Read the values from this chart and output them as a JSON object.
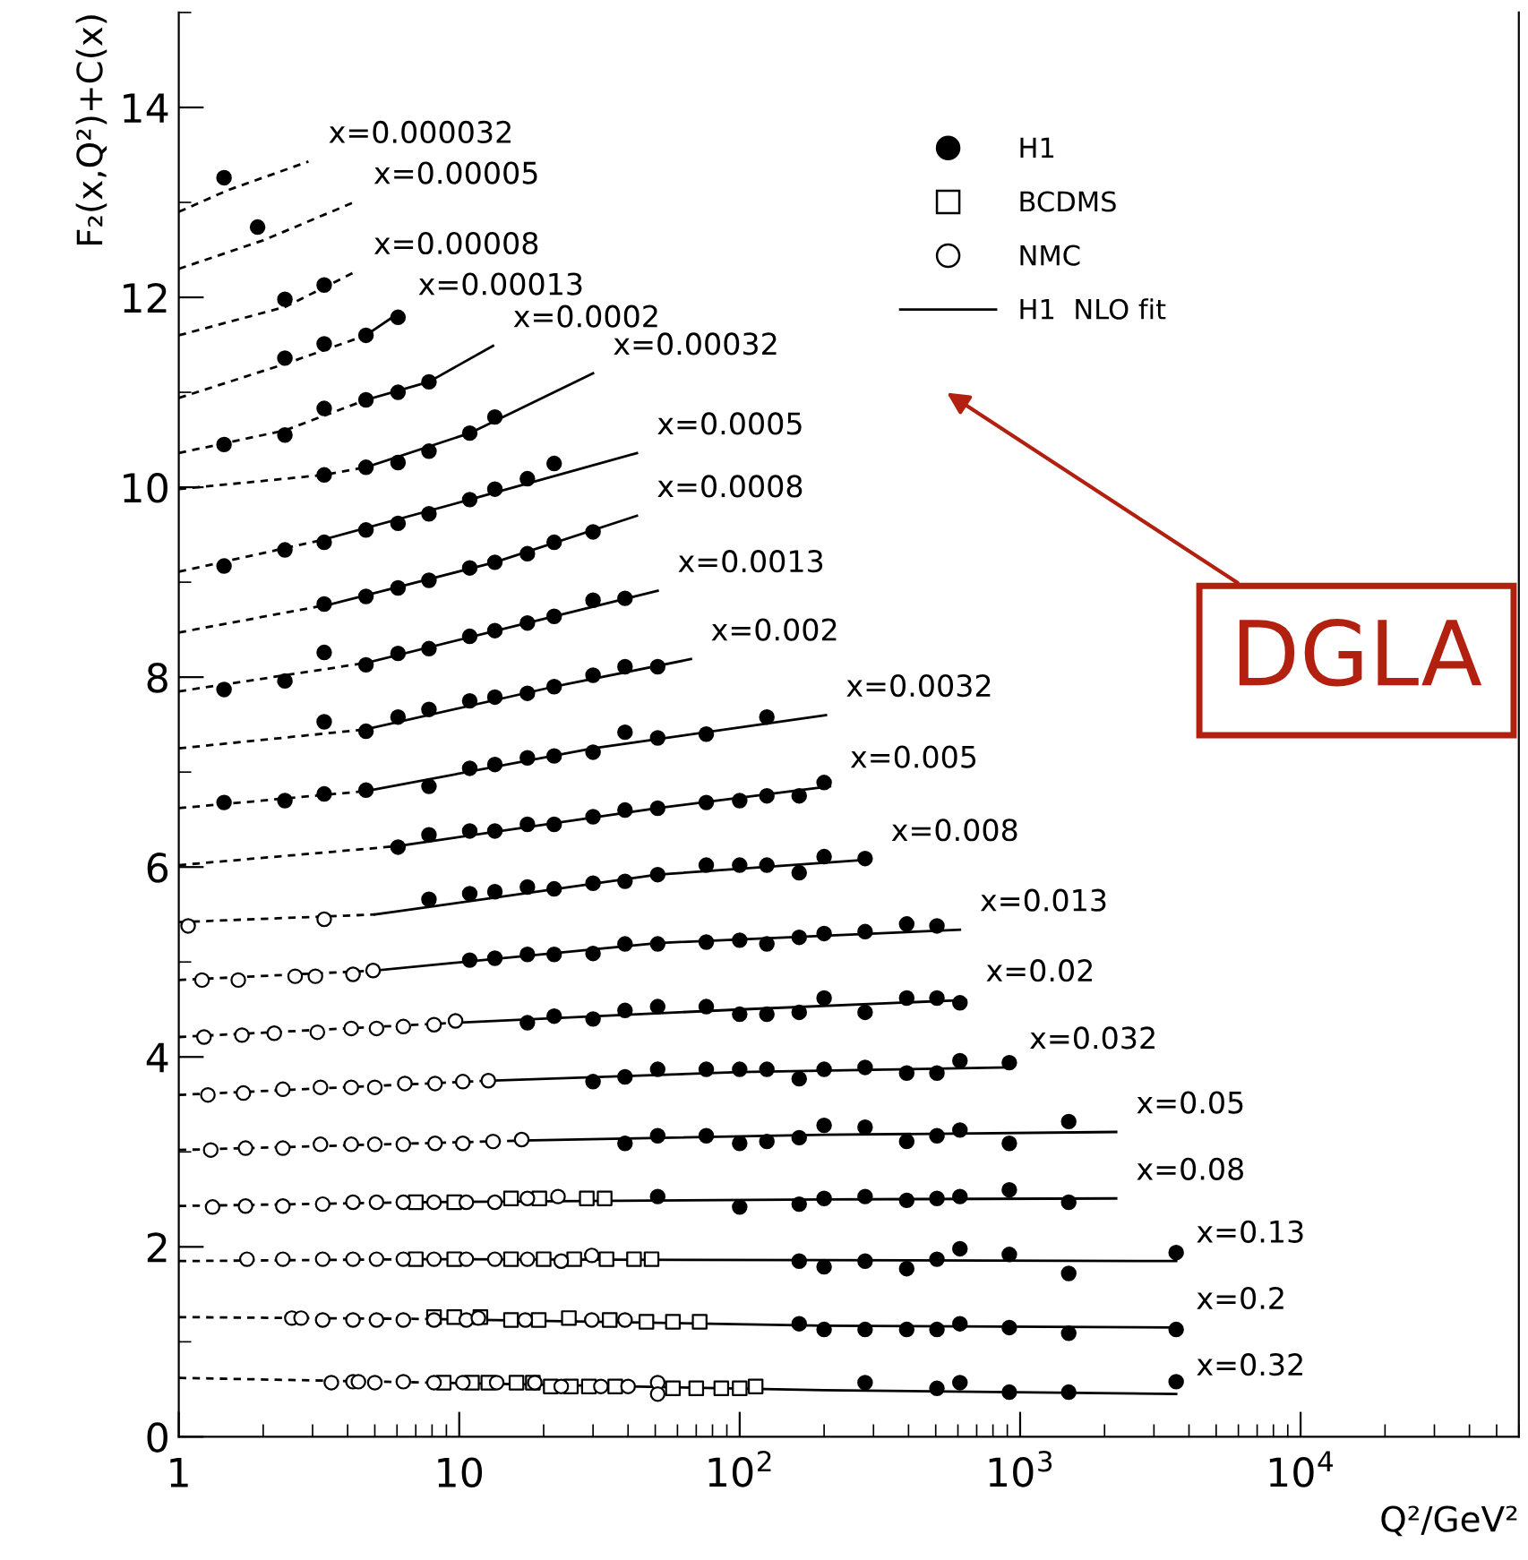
{
  "chart_data": {
    "type": "scatter",
    "xlabel": "Q²/GeV²",
    "ylabel": "F₂(x,Q²)+C(x)",
    "log": "x",
    "grid": false,
    "legend": "top right",
    "xlim": [
      1,
      60000
    ],
    "ylim": [
      0,
      15
    ],
    "xticks": [
      1,
      10,
      {
        "value": 100,
        "label": "10$^{2}$"
      },
      {
        "value": 1000,
        "label": "10$^{3}$"
      },
      {
        "value": 10000,
        "label": "10$^{4}$"
      }
    ],
    "yticks": [
      0,
      2,
      4,
      6,
      8,
      10,
      12,
      14
    ],
    "annotations": [
      {
        "text": "x=0.000032",
        "x": 2.9,
        "y": 13.43
      },
      {
        "text": "x=0.00005",
        "x": 4.2,
        "y": 13.0
      },
      {
        "text": "x=0.00008",
        "x": 4.2,
        "y": 12.26
      },
      {
        "text": "x=0.00013",
        "x": 6.05,
        "y": 11.83
      },
      {
        "text": "x=0.0002",
        "x": 13.2,
        "y": 11.49
      },
      {
        "text": "x=0.00032",
        "x": 30,
        "y": 11.2
      },
      {
        "text": "x=0.0005",
        "x": 43,
        "y": 10.36
      },
      {
        "text": "x=0.0008",
        "x": 43,
        "y": 9.7
      },
      {
        "text": "x=0.0013",
        "x": 51,
        "y": 8.91
      },
      {
        "text": "x=0.002",
        "x": 67,
        "y": 8.19
      },
      {
        "text": "x=0.0032",
        "x": 203,
        "y": 7.6
      },
      {
        "text": "x=0.005",
        "x": 210,
        "y": 6.85
      },
      {
        "text": "x=0.008",
        "x": 294,
        "y": 6.08
      },
      {
        "text": "x=0.013",
        "x": 610,
        "y": 5.34
      },
      {
        "text": "x=0.02",
        "x": 640,
        "y": 4.6
      },
      {
        "text": "x=0.032",
        "x": 915,
        "y": 3.89
      },
      {
        "text": "x=0.05",
        "x": 2200,
        "y": 3.21
      },
      {
        "text": "x=0.08",
        "x": 2200,
        "y": 2.51
      },
      {
        "text": "x=0.13",
        "x": 3600,
        "y": 1.85
      },
      {
        "text": "x=0.2",
        "x": 3600,
        "y": 1.15
      },
      {
        "text": "x=0.32",
        "x": 3600,
        "y": 0.45
      },
      "DGLA"
    ],
    "series": [
      {
        "type": "line",
        "line_style": "dashed",
        "color": "#000000",
        "x": [
          1,
          1.5,
          2.9
        ],
        "values": [
          12.9,
          13.13,
          13.43
        ]
      },
      {
        "type": "line",
        "line_style": "dashed",
        "color": "#000000",
        "x": [
          1,
          2,
          4.2
        ],
        "values": [
          12.3,
          12.6,
          13.0
        ]
      },
      {
        "type": "line",
        "line_style": "dashed",
        "color": "#000000",
        "x": [
          1,
          2.4,
          4.2
        ],
        "values": [
          11.6,
          11.9,
          12.26
        ]
      },
      {
        "type": "line",
        "line_style": "dashed",
        "color": "#000000",
        "x": [
          1,
          2.4,
          4.65
        ],
        "values": [
          10.94,
          11.3,
          11.6
        ]
      },
      {
        "type": "line",
        "line_style": "solid",
        "name": "H1  NLO fit",
        "color": "#000000",
        "x": [
          4.65,
          6.05
        ],
        "values": [
          11.6,
          11.83
        ]
      },
      {
        "type": "line",
        "line_style": "dashed",
        "color": "#000000",
        "x": [
          1,
          2.4,
          4.65
        ],
        "values": [
          10.36,
          10.6,
          10.92
        ]
      },
      {
        "type": "line",
        "line_style": "solid",
        "color": "#000000",
        "x": [
          4.65,
          7.8,
          13.2
        ],
        "values": [
          10.92,
          11.11,
          11.49
        ]
      },
      {
        "type": "line",
        "line_style": "dashed",
        "color": "#000000",
        "x": [
          1,
          3.3,
          4.65
        ],
        "values": [
          9.98,
          10.13,
          10.21
        ]
      },
      {
        "type": "line",
        "line_style": "solid",
        "color": "#000000",
        "x": [
          4.65,
          10.9,
          30
        ],
        "values": [
          10.21,
          10.57,
          11.2
        ]
      },
      {
        "type": "line",
        "line_style": "dashed",
        "color": "#000000",
        "x": [
          1,
          3.3
        ],
        "values": [
          9.11,
          9.45
        ]
      },
      {
        "type": "line",
        "line_style": "solid",
        "color": "#000000",
        "x": [
          3.3,
          10.9,
          43
        ],
        "values": [
          9.45,
          9.87,
          10.36
        ]
      },
      {
        "type": "line",
        "line_style": "dashed",
        "color": "#000000",
        "x": [
          1,
          3.5
        ],
        "values": [
          8.47,
          8.77
        ]
      },
      {
        "type": "line",
        "line_style": "solid",
        "color": "#000000",
        "x": [
          3.5,
          13.4,
          43
        ],
        "values": [
          8.77,
          9.21,
          9.7
        ]
      },
      {
        "type": "line",
        "line_style": "dashed",
        "color": "#000000",
        "x": [
          1,
          4.65
        ],
        "values": [
          7.85,
          8.15
        ]
      },
      {
        "type": "line",
        "line_style": "solid",
        "color": "#000000",
        "x": [
          4.65,
          17.5,
          51
        ],
        "values": [
          8.15,
          8.57,
          8.91
        ]
      },
      {
        "type": "line",
        "line_style": "dashed",
        "color": "#000000",
        "x": [
          1,
          4.65
        ],
        "values": [
          7.25,
          7.45
        ]
      },
      {
        "type": "line",
        "line_style": "solid",
        "color": "#000000",
        "x": [
          4.65,
          21.8,
          67
        ],
        "values": [
          7.45,
          7.9,
          8.19
        ]
      },
      {
        "type": "line",
        "line_style": "dashed",
        "color": "#000000",
        "x": [
          1,
          4.65
        ],
        "values": [
          6.62,
          6.8
        ]
      },
      {
        "type": "line",
        "line_style": "solid",
        "color": "#000000",
        "x": [
          4.65,
          30,
          203
        ],
        "values": [
          6.8,
          7.25,
          7.6
        ]
      },
      {
        "type": "line",
        "line_style": "dashed",
        "color": "#000000",
        "x": [
          1,
          6
        ],
        "values": [
          6.02,
          6.22
        ]
      },
      {
        "type": "line",
        "line_style": "solid",
        "color": "#000000",
        "x": [
          6,
          51,
          210
        ],
        "values": [
          6.22,
          6.62,
          6.85
        ]
      },
      {
        "type": "line",
        "line_style": "dashed",
        "color": "#000000",
        "x": [
          1,
          5
        ],
        "values": [
          5.42,
          5.5
        ]
      },
      {
        "type": "line",
        "line_style": "solid",
        "color": "#000000",
        "x": [
          5,
          51,
          294
        ],
        "values": [
          5.5,
          5.92,
          6.08
        ]
      },
      {
        "type": "line",
        "line_style": "dashed",
        "color": "#000000",
        "x": [
          1,
          5
        ],
        "values": [
          4.81,
          4.91
        ]
      },
      {
        "type": "line",
        "line_style": "solid",
        "color": "#000000",
        "x": [
          5,
          51,
          610
        ],
        "values": [
          4.91,
          5.2,
          5.34
        ]
      },
      {
        "type": "line",
        "line_style": "dashed",
        "color": "#000000",
        "x": [
          1,
          9.7
        ],
        "values": [
          4.21,
          4.36
        ]
      },
      {
        "type": "line",
        "line_style": "solid",
        "color": "#000000",
        "x": [
          9.7,
          100,
          640
        ],
        "values": [
          4.36,
          4.5,
          4.6
        ]
      },
      {
        "type": "line",
        "line_style": "dashed",
        "color": "#000000",
        "x": [
          1,
          12.7
        ],
        "values": [
          3.6,
          3.75
        ]
      },
      {
        "type": "line",
        "line_style": "solid",
        "color": "#000000",
        "x": [
          12.7,
          100,
          915
        ],
        "values": [
          3.75,
          3.84,
          3.89
        ]
      },
      {
        "type": "line",
        "line_style": "dashed",
        "color": "#000000",
        "x": [
          1,
          16.7
        ],
        "values": [
          3.02,
          3.12
        ]
      },
      {
        "type": "line",
        "line_style": "solid",
        "color": "#000000",
        "x": [
          16.7,
          200,
          2200
        ],
        "values": [
          3.12,
          3.18,
          3.21
        ]
      },
      {
        "type": "line",
        "line_style": "dashed",
        "color": "#000000",
        "x": [
          1,
          7
        ],
        "values": [
          2.43,
          2.47
        ]
      },
      {
        "type": "line",
        "line_style": "solid",
        "color": "#000000",
        "x": [
          7,
          200,
          2200
        ],
        "values": [
          2.47,
          2.5,
          2.51
        ]
      },
      {
        "type": "line",
        "line_style": "dashed",
        "color": "#000000",
        "x": [
          1,
          7
        ],
        "values": [
          1.85,
          1.87
        ]
      },
      {
        "type": "line",
        "line_style": "solid",
        "color": "#000000",
        "x": [
          7,
          200,
          3600
        ],
        "values": [
          1.87,
          1.86,
          1.85
        ]
      },
      {
        "type": "line",
        "line_style": "dashed",
        "color": "#000000",
        "x": [
          1,
          8
        ],
        "values": [
          1.26,
          1.24
        ]
      },
      {
        "type": "line",
        "line_style": "solid",
        "color": "#000000",
        "x": [
          8,
          200,
          3600
        ],
        "values": [
          1.24,
          1.17,
          1.15
        ]
      },
      {
        "type": "line",
        "line_style": "dashed",
        "color": "#000000",
        "x": [
          1,
          8
        ],
        "values": [
          0.62,
          0.57
        ]
      },
      {
        "type": "line",
        "line_style": "solid",
        "color": "#000000",
        "x": [
          8,
          200,
          3600
        ],
        "values": [
          0.57,
          0.49,
          0.45
        ]
      },
      {
        "name": "H1",
        "marker": "circle",
        "color": "#000000",
        "x": [
          1.45,
          1.91,
          2.39,
          3.3,
          2.39,
          3.3,
          4.65,
          6.05,
          1.45,
          2.39,
          3.3,
          4.65,
          6.05,
          7.8,
          3.3,
          4.65,
          6.05,
          7.8,
          10.9,
          13.4,
          1.45,
          2.39,
          3.3,
          4.65,
          6.05,
          7.8,
          10.9,
          13.4,
          17.5,
          21.8,
          3.3,
          4.65,
          6.05,
          7.8,
          10.9,
          13.4,
          17.5,
          21.8,
          30,
          1.45,
          2.39,
          3.3,
          4.65,
          6.05,
          7.8,
          10.9,
          13.4,
          17.5,
          21.8,
          30,
          39,
          3.3,
          4.65,
          6.05,
          7.8,
          10.9,
          13.4,
          17.5,
          21.8,
          30,
          39,
          51,
          1.45,
          2.39,
          3.3,
          4.65,
          7.8,
          10.9,
          13.4,
          17.5,
          21.8,
          30,
          39,
          51,
          76,
          125,
          6.05,
          7.8,
          10.9,
          13.4,
          17.5,
          21.8,
          30,
          39,
          51,
          76,
          100,
          125,
          163,
          200,
          7.8,
          10.9,
          13.4,
          17.5,
          21.8,
          30,
          39,
          51,
          76,
          100,
          125,
          163,
          200,
          280,
          10.9,
          13.4,
          17.5,
          21.8,
          30,
          39,
          51,
          76,
          100,
          125,
          163,
          200,
          280,
          394,
          505,
          17.5,
          21.8,
          30,
          39,
          51,
          76,
          100,
          125,
          163,
          200,
          280,
          394,
          505,
          610,
          30,
          39,
          51,
          76,
          100,
          125,
          163,
          200,
          280,
          394,
          505,
          610,
          915,
          39,
          51,
          76,
          100,
          125,
          163,
          200,
          280,
          394,
          505,
          610,
          915,
          1490,
          51,
          100,
          163,
          200,
          280,
          394,
          505,
          610,
          915,
          1490,
          163,
          200,
          280,
          394,
          505,
          610,
          915,
          1490,
          3600,
          163,
          200,
          280,
          394,
          505,
          610,
          915,
          1490,
          3600,
          280,
          505,
          610,
          915,
          1490,
          3600
        ],
        "values": [
          13.26,
          12.74,
          11.98,
          12.13,
          11.36,
          11.51,
          11.6,
          11.79,
          10.45,
          10.55,
          10.83,
          10.92,
          11.0,
          11.11,
          10.13,
          10.21,
          10.26,
          10.38,
          10.57,
          10.74,
          9.17,
          9.34,
          9.42,
          9.55,
          9.62,
          9.72,
          9.87,
          9.98,
          10.09,
          10.25,
          8.77,
          8.85,
          8.94,
          9.02,
          9.15,
          9.21,
          9.3,
          9.42,
          9.53,
          7.87,
          7.96,
          8.26,
          8.13,
          8.25,
          8.3,
          8.43,
          8.49,
          8.57,
          8.64,
          8.81,
          8.83,
          7.53,
          7.43,
          7.58,
          7.66,
          7.75,
          7.79,
          7.83,
          7.9,
          8.02,
          8.11,
          8.11,
          6.68,
          6.7,
          6.77,
          6.81,
          6.85,
          7.04,
          7.08,
          7.15,
          7.17,
          7.21,
          7.42,
          7.36,
          7.4,
          7.58,
          6.21,
          6.34,
          6.38,
          6.38,
          6.45,
          6.45,
          6.53,
          6.6,
          6.62,
          6.68,
          6.7,
          6.75,
          6.75,
          6.89,
          5.66,
          5.72,
          5.74,
          5.79,
          5.77,
          5.83,
          5.85,
          5.92,
          6.02,
          6.02,
          6.02,
          5.94,
          6.11,
          6.09,
          5.02,
          5.04,
          5.08,
          5.08,
          5.09,
          5.19,
          5.19,
          5.21,
          5.23,
          5.19,
          5.26,
          5.3,
          5.32,
          5.4,
          5.38,
          4.36,
          4.43,
          4.4,
          4.49,
          4.53,
          4.53,
          4.45,
          4.45,
          4.47,
          4.62,
          4.47,
          4.62,
          4.62,
          4.57,
          3.74,
          3.79,
          3.87,
          3.87,
          3.87,
          3.87,
          3.77,
          3.87,
          3.89,
          3.83,
          3.83,
          3.96,
          3.94,
          3.09,
          3.17,
          3.17,
          3.09,
          3.11,
          3.15,
          3.28,
          3.26,
          3.11,
          3.17,
          3.23,
          3.09,
          3.32,
          2.53,
          2.42,
          2.45,
          2.51,
          2.53,
          2.49,
          2.51,
          2.53,
          2.6,
          2.47,
          1.85,
          1.79,
          1.85,
          1.77,
          1.87,
          1.98,
          1.92,
          1.72,
          1.94,
          1.19,
          1.13,
          1.13,
          1.13,
          1.13,
          1.19,
          1.15,
          1.09,
          1.13,
          0.57,
          0.51,
          0.57,
          0.47,
          0.47,
          0.58
        ]
      },
      {
        "name": "BCDMS",
        "marker": "square",
        "color": "#ffffff",
        "x": [
          7,
          9.6,
          15.3,
          19.3,
          28.5,
          33,
          7,
          9.6,
          15.3,
          20,
          25.7,
          33.5,
          42,
          48.5,
          8.13,
          9.6,
          11.9,
          15.3,
          19.2,
          24.6,
          34.4,
          46.5,
          57.8,
          72,
          8.8,
          11.1,
          12.7,
          16,
          18.3,
          21.2,
          25,
          29,
          36,
          57.8,
          70,
          86,
          100,
          114
        ],
        "values": [
          2.47,
          2.47,
          2.51,
          2.51,
          2.51,
          2.51,
          1.87,
          1.87,
          1.87,
          1.87,
          1.87,
          1.87,
          1.87,
          1.87,
          1.26,
          1.26,
          1.26,
          1.23,
          1.23,
          1.25,
          1.23,
          1.21,
          1.21,
          1.21,
          0.57,
          0.57,
          0.57,
          0.57,
          0.57,
          0.53,
          0.53,
          0.53,
          0.53,
          0.51,
          0.51,
          0.51,
          0.51,
          0.53
        ]
      },
      {
        "name": "NMC",
        "marker": "circle",
        "color": "#ffffff",
        "x": [
          1.08,
          3.3,
          1.21,
          1.63,
          2.6,
          3.07,
          4.18,
          4.93,
          1.23,
          1.68,
          2.19,
          3.12,
          4.12,
          5.07,
          6.32,
          8.13,
          9.7,
          1.27,
          1.7,
          2.35,
          3.2,
          4.12,
          5,
          6.4,
          8.2,
          10.3,
          12.7,
          1.3,
          1.73,
          2.35,
          3.2,
          4.12,
          5,
          6.32,
          8.2,
          10.3,
          13.2,
          16.7,
          1.32,
          1.73,
          2.35,
          3.26,
          4.18,
          5.07,
          6.32,
          8.13,
          10.6,
          13.4,
          17.5,
          22.5,
          1.75,
          2.35,
          3.26,
          4.18,
          5.07,
          6.32,
          8.13,
          10.6,
          13.4,
          17.5,
          23.1,
          29.7,
          2.53,
          2.73,
          3.26,
          4.18,
          5.07,
          6.32,
          8.13,
          10.6,
          11.7,
          17.2,
          29.7,
          39,
          3.5,
          4.18,
          4.37,
          5,
          6.32,
          8.13,
          10.3,
          13.6,
          18.6,
          23.1,
          32,
          40,
          51,
          51
        ],
        "values": [
          5.38,
          5.45,
          4.81,
          4.81,
          4.85,
          4.85,
          4.87,
          4.91,
          4.21,
          4.23,
          4.25,
          4.26,
          4.3,
          4.3,
          4.32,
          4.34,
          4.38,
          3.6,
          3.62,
          3.66,
          3.68,
          3.68,
          3.68,
          3.72,
          3.72,
          3.74,
          3.75,
          3.02,
          3.04,
          3.04,
          3.08,
          3.08,
          3.08,
          3.08,
          3.09,
          3.09,
          3.11,
          3.13,
          2.42,
          2.43,
          2.43,
          2.45,
          2.47,
          2.47,
          2.47,
          2.47,
          2.47,
          2.47,
          2.51,
          2.53,
          1.87,
          1.87,
          1.87,
          1.87,
          1.87,
          1.87,
          1.87,
          1.87,
          1.87,
          1.87,
          1.85,
          1.91,
          1.25,
          1.25,
          1.23,
          1.23,
          1.23,
          1.23,
          1.23,
          1.23,
          1.25,
          1.23,
          1.23,
          1.23,
          0.57,
          0.58,
          0.58,
          0.57,
          0.58,
          0.57,
          0.57,
          0.57,
          0.57,
          0.53,
          0.53,
          0.53,
          0.57,
          0.45
        ]
      }
    ]
  }
}
